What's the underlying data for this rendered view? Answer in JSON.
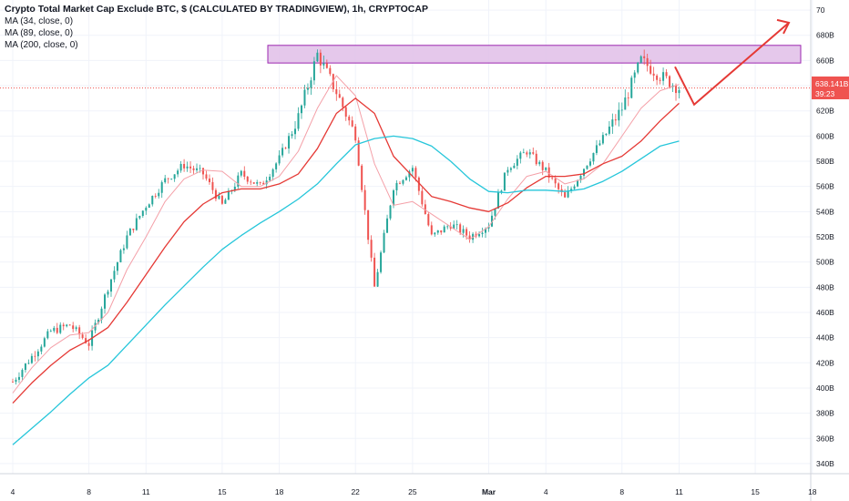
{
  "header": {
    "title": "Crypto Total Market Cap Exclude BTC, $ (CALCULATED BY TRADINGVIEW), 1h, CRYPTOCAP"
  },
  "indicators": [
    {
      "label": "MA (34, close, 0)",
      "color": "#f4a0a8"
    },
    {
      "label": "MA (89, close, 0)",
      "color": "#e53935"
    },
    {
      "label": "MA (200, close, 0)",
      "color": "#26c6da"
    }
  ],
  "price_tag": {
    "value_label": "638.141B",
    "countdown_label": "39:23",
    "color": "#ef5350"
  },
  "colors": {
    "up": "#26a69a",
    "down": "#ef5350",
    "zone_fill": "#e1bee7",
    "zone_stroke": "#9c27b0",
    "projection": "#e53935",
    "grid": "#f0f3fa"
  },
  "chart_data": {
    "type": "candlestick",
    "title": "Crypto Total Market Cap Exclude BTC, $ (CALCULATED BY TRADINGVIEW), 1h, CRYPTOCAP",
    "x_tick_labels": [
      "4",
      "8",
      "11",
      "15",
      "18",
      "22",
      "25",
      "Mar",
      "4",
      "8",
      "11",
      "15",
      "18"
    ],
    "y_tick_labels": [
      "340B",
      "360B",
      "380B",
      "400B",
      "420B",
      "440B",
      "460B",
      "480B",
      "500B",
      "520B",
      "540B",
      "560B",
      "580B",
      "600B",
      "620B",
      "640B",
      "660B",
      "680B",
      "70"
    ],
    "y_unit": "B",
    "ylim": [
      332,
      708
    ],
    "current_price": 638.141,
    "grid": true,
    "price_path": [
      {
        "x": "4",
        "y": 405
      },
      {
        "x": "5",
        "y": 425
      },
      {
        "x": "6",
        "y": 445
      },
      {
        "x": "7",
        "y": 450
      },
      {
        "x": "8",
        "y": 435
      },
      {
        "x": "9",
        "y": 480
      },
      {
        "x": "10",
        "y": 520
      },
      {
        "x": "11",
        "y": 545
      },
      {
        "x": "12",
        "y": 565
      },
      {
        "x": "13",
        "y": 577
      },
      {
        "x": "14",
        "y": 570
      },
      {
        "x": "15",
        "y": 545
      },
      {
        "x": "16",
        "y": 570
      },
      {
        "x": "17",
        "y": 560
      },
      {
        "x": "18",
        "y": 582
      },
      {
        "x": "19",
        "y": 615
      },
      {
        "x": "20",
        "y": 665
      },
      {
        "x": "21",
        "y": 635
      },
      {
        "x": "22",
        "y": 600
      },
      {
        "x": "23",
        "y": 480
      },
      {
        "x": "24",
        "y": 560
      },
      {
        "x": "25",
        "y": 575
      },
      {
        "x": "26",
        "y": 520
      },
      {
        "x": "27",
        "y": 530
      },
      {
        "x": "28",
        "y": 520
      },
      {
        "x": "Mar",
        "y": 530
      },
      {
        "x": "2",
        "y": 575
      },
      {
        "x": "3",
        "y": 588
      },
      {
        "x": "4",
        "y": 572
      },
      {
        "x": "5",
        "y": 550
      },
      {
        "x": "6",
        "y": 575
      },
      {
        "x": "7",
        "y": 598
      },
      {
        "x": "8",
        "y": 622
      },
      {
        "x": "9",
        "y": 660
      },
      {
        "x": "10",
        "y": 648
      },
      {
        "x": "11",
        "y": 638
      }
    ],
    "series": [
      {
        "name": "MA (34, close, 0)",
        "color": "#f4a0a8",
        "y": [
          396,
          416,
          432,
          442,
          444,
          460,
          494,
          520,
          548,
          566,
          573,
          572,
          560,
          560,
          568,
          588,
          622,
          648,
          632,
          578,
          545,
          548,
          538,
          528,
          518,
          528,
          550,
          568,
          572,
          562,
          566,
          578,
          600,
          622,
          636,
          641
        ]
      },
      {
        "name": "MA (89, close, 0)",
        "color": "#e53935",
        "y": [
          388,
          404,
          418,
          430,
          438,
          448,
          468,
          490,
          512,
          532,
          546,
          555,
          558,
          558,
          562,
          570,
          590,
          618,
          630,
          618,
          584,
          568,
          552,
          548,
          543,
          540,
          547,
          559,
          568,
          568,
          570,
          578,
          584,
          596,
          612,
          626
        ]
      },
      {
        "name": "MA (200, close, 0)",
        "color": "#26c6da",
        "y": [
          355,
          368,
          381,
          395,
          408,
          418,
          434,
          450,
          466,
          481,
          496,
          510,
          521,
          531,
          540,
          550,
          562,
          578,
          593,
          598,
          600,
          598,
          592,
          580,
          566,
          556,
          555,
          557,
          557,
          556,
          558,
          564,
          572,
          582,
          592,
          596
        ]
      }
    ],
    "resistance_zone": {
      "y_low": 658,
      "y_high": 672,
      "x_from": "18",
      "x_to": "18"
    },
    "projection": [
      {
        "x": "11",
        "y": 655
      },
      {
        "x": "12",
        "y": 625
      },
      {
        "x": "18",
        "y": 690
      }
    ]
  }
}
